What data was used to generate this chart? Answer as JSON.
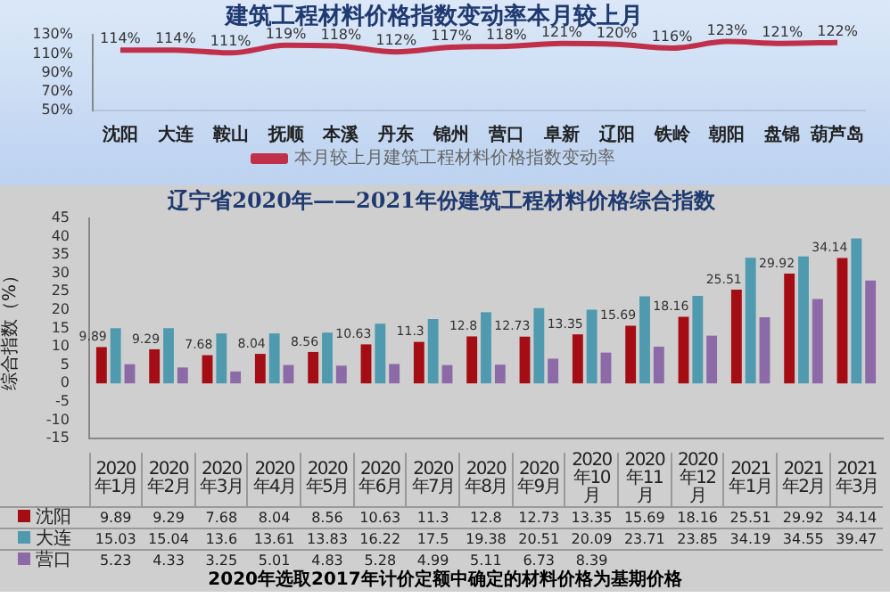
{
  "chart_data": [
    {
      "type": "line",
      "title": "建筑工程材料价格指数变动率本月较上月",
      "categories": [
        "沈阳",
        "大连",
        "鞍山",
        "抚顺",
        "本溪",
        "丹东",
        "锦州",
        "营口",
        "阜新",
        "辽阳",
        "铁岭",
        "朝阳",
        "盘锦",
        "葫芦岛"
      ],
      "series": [
        {
          "name": "本月较上月建筑工程材料价格指数变动率",
          "color": "#c0304a",
          "values": [
            114,
            114,
            111,
            119,
            118,
            112,
            117,
            118,
            121,
            120,
            116,
            123,
            121,
            122
          ],
          "value_labels": [
            "114%",
            "114%",
            "111%",
            "119%",
            "118%",
            "112%",
            "117%",
            "118%",
            "121%",
            "120%",
            "116%",
            "123%",
            "121%",
            "122%"
          ]
        }
      ],
      "ylim": [
        50,
        130
      ],
      "yticks": [
        {
          "value": 50,
          "label": "50%"
        },
        {
          "value": 70,
          "label": "70%"
        },
        {
          "value": 90,
          "label": "90%"
        },
        {
          "value": 110,
          "label": "110%"
        },
        {
          "value": 130,
          "label": "130%"
        }
      ],
      "legend": "bottom",
      "marker": "none",
      "line_style": "solid"
    },
    {
      "type": "bar",
      "title": "辽宁省2020年——2021年份建筑工程材料价格综合指数",
      "ylabel": "综合指数（%）",
      "categories": [
        "2020年1月",
        "2020年2月",
        "2020年3月",
        "2020年4月",
        "2020年5月",
        "2020年6月",
        "2020年7月",
        "2020年8月",
        "2020年9月",
        "2020年10月",
        "2020年11月",
        "2020年12月",
        "2021年1月",
        "2021年2月",
        "2021年3月"
      ],
      "series": [
        {
          "name": "沈阳",
          "color": "#a50d14",
          "values": [
            9.89,
            9.29,
            7.68,
            8.04,
            8.56,
            10.63,
            11.3,
            12.8,
            12.73,
            13.35,
            15.69,
            18.16,
            25.51,
            29.92,
            34.14
          ],
          "value_labels": [
            "9.89",
            "9.29",
            "7.68",
            "8.04",
            "8.56",
            "10.63",
            "11.3",
            "12.8",
            "12.73",
            "13.35",
            "15.69",
            "18.16",
            "25.51",
            "29.92",
            "34.14"
          ]
        },
        {
          "name": "大连",
          "color": "#4f9aae",
          "values": [
            15.03,
            15.04,
            13.6,
            13.61,
            13.83,
            16.22,
            17.5,
            19.38,
            20.51,
            20.09,
            23.71,
            23.85,
            34.19,
            34.55,
            39.47
          ],
          "value_labels": [
            "15.03",
            "15.04",
            "13.6",
            "13.61",
            "13.83",
            "16.22",
            "17.5",
            "19.38",
            "20.51",
            "20.09",
            "23.71",
            "23.85",
            "34.19",
            "34.55",
            "39.47"
          ]
        },
        {
          "name": "营口",
          "color": "#8c6aa8",
          "values": [
            5.23,
            4.33,
            3.25,
            5.01,
            4.83,
            5.28,
            4.99,
            5.11,
            6.73,
            8.39,
            10,
            13,
            18,
            23,
            28
          ],
          "value_labels": [
            "5.23",
            "4.33",
            "3.25",
            "5.01",
            "4.83",
            "5.28",
            "4.99",
            "5.11",
            "6.73",
            "8.39",
            null,
            null,
            null,
            null,
            null
          ]
        }
      ],
      "ylim": [
        -15,
        45
      ],
      "yticks": [
        -15,
        -10,
        -5,
        0,
        5,
        10,
        15,
        20,
        25,
        30,
        35,
        40,
        45
      ],
      "legend": "bottom",
      "grid": false,
      "annotations": [
        "2020年选取2017年计价定额中确定的材料价格为基期价格"
      ]
    }
  ]
}
